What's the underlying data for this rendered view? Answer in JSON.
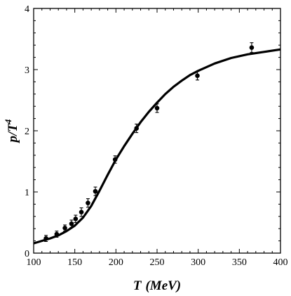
{
  "chart_data": {
    "type": "scatter",
    "title": "",
    "xlabel": "T (MeV)",
    "xlabel_parts": {
      "var": "T",
      "unit": "(MeV)"
    },
    "ylabel": "p/T^4",
    "ylabel_parts": {
      "base": "p/T",
      "exp": "4"
    },
    "xlim": [
      100,
      400
    ],
    "ylim": [
      0,
      4
    ],
    "xticks": [
      100,
      150,
      200,
      250,
      300,
      350,
      400
    ],
    "yticks": [
      0,
      1,
      2,
      3,
      4
    ],
    "grid": false,
    "series": [
      {
        "kind": "points_with_error_bars",
        "x": [
          115,
          128,
          138,
          146,
          151,
          158,
          166,
          175,
          199,
          225,
          250,
          299,
          365
        ],
        "y": [
          0.24,
          0.31,
          0.41,
          0.48,
          0.56,
          0.67,
          0.82,
          1.01,
          1.53,
          2.04,
          2.37,
          2.9,
          3.36
        ],
        "err": [
          0.05,
          0.05,
          0.05,
          0.06,
          0.06,
          0.07,
          0.07,
          0.07,
          0.06,
          0.07,
          0.07,
          0.07,
          0.08
        ]
      },
      {
        "kind": "curve",
        "x": [
          100,
          110,
          120,
          130,
          140,
          150,
          160,
          170,
          180,
          190,
          200,
          210,
          220,
          230,
          240,
          250,
          260,
          270,
          280,
          290,
          300,
          320,
          340,
          360,
          380,
          400
        ],
        "y": [
          0.16,
          0.2,
          0.24,
          0.29,
          0.36,
          0.45,
          0.58,
          0.77,
          1.02,
          1.28,
          1.53,
          1.75,
          1.95,
          2.14,
          2.31,
          2.46,
          2.6,
          2.72,
          2.82,
          2.91,
          2.98,
          3.1,
          3.19,
          3.25,
          3.29,
          3.33
        ]
      }
    ]
  }
}
